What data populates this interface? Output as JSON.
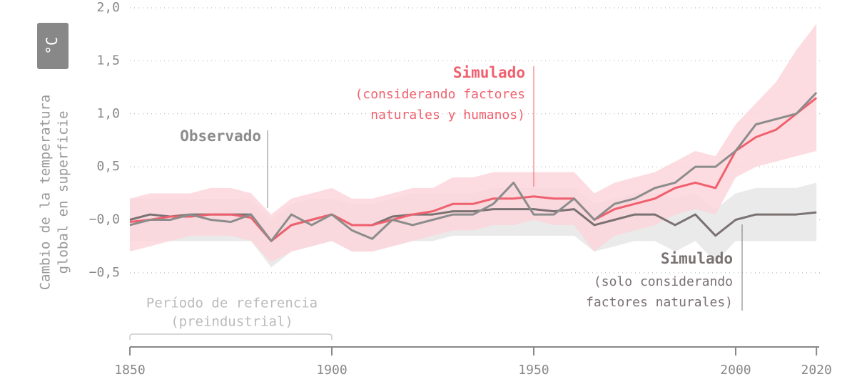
{
  "chart_data": {
    "type": "line",
    "y_label": [
      "Cambio de la temperatura",
      "global en superficie"
    ],
    "unit": "°C",
    "x": [
      1850,
      1855,
      1860,
      1865,
      1870,
      1875,
      1880,
      1885,
      1890,
      1895,
      1900,
      1905,
      1910,
      1915,
      1920,
      1925,
      1930,
      1935,
      1940,
      1945,
      1950,
      1955,
      1960,
      1965,
      1970,
      1975,
      1980,
      1985,
      1990,
      1995,
      2000,
      2005,
      2010,
      2015,
      2020
    ],
    "series": [
      {
        "name": "Observado",
        "color": "#8c8c8c",
        "label_lines": [],
        "values": [
          -0.05,
          0.0,
          0.0,
          0.05,
          0.0,
          -0.02,
          0.05,
          -0.2,
          0.05,
          -0.05,
          0.05,
          -0.1,
          -0.18,
          0.0,
          -0.05,
          0.0,
          0.05,
          0.05,
          0.15,
          0.35,
          0.05,
          0.05,
          0.2,
          0.0,
          0.15,
          0.2,
          0.3,
          0.35,
          0.5,
          0.5,
          0.65,
          0.9,
          0.95,
          1.0,
          1.2
        ]
      },
      {
        "name": "Simulado",
        "color": "#f0606e",
        "band_color": "#fcd6da",
        "label_lines": [
          "(considerando factores",
          "naturales y humanos)"
        ],
        "values": [
          -0.02,
          0.0,
          0.03,
          0.03,
          0.05,
          0.05,
          0.02,
          -0.2,
          -0.05,
          0.0,
          0.05,
          -0.05,
          -0.05,
          0.0,
          0.05,
          0.08,
          0.15,
          0.15,
          0.2,
          0.2,
          0.22,
          0.2,
          0.2,
          0.0,
          0.1,
          0.15,
          0.2,
          0.3,
          0.35,
          0.3,
          0.65,
          0.78,
          0.85,
          1.0,
          1.15
        ],
        "low": [
          -0.3,
          -0.25,
          -0.2,
          -0.15,
          -0.15,
          -0.15,
          -0.2,
          -0.4,
          -0.3,
          -0.25,
          -0.2,
          -0.3,
          -0.3,
          -0.25,
          -0.2,
          -0.15,
          -0.1,
          -0.1,
          -0.05,
          -0.05,
          0.0,
          -0.05,
          -0.05,
          -0.3,
          -0.15,
          -0.1,
          -0.05,
          0.05,
          0.1,
          0.05,
          0.4,
          0.5,
          0.55,
          0.6,
          0.65
        ],
        "high": [
          0.2,
          0.25,
          0.25,
          0.25,
          0.3,
          0.3,
          0.25,
          0.05,
          0.2,
          0.25,
          0.3,
          0.2,
          0.2,
          0.25,
          0.3,
          0.3,
          0.4,
          0.4,
          0.45,
          0.45,
          0.45,
          0.45,
          0.45,
          0.25,
          0.35,
          0.4,
          0.45,
          0.55,
          0.65,
          0.6,
          0.9,
          1.1,
          1.3,
          1.6,
          1.85
        ]
      },
      {
        "name": "Simulado",
        "color": "#7a7172",
        "band_color": "#e6e6e6",
        "label_lines": [
          "(solo considerando",
          "factores naturales)"
        ],
        "values": [
          0.0,
          0.05,
          0.03,
          0.05,
          0.05,
          0.05,
          0.05,
          -0.2,
          -0.05,
          0.0,
          0.05,
          -0.05,
          -0.05,
          0.03,
          0.05,
          0.05,
          0.08,
          0.08,
          0.1,
          0.1,
          0.1,
          0.08,
          0.1,
          -0.05,
          0.0,
          0.05,
          0.05,
          -0.05,
          0.05,
          -0.15,
          0.0,
          0.05,
          0.05,
          0.05,
          0.07
        ],
        "low": [
          -0.2,
          -0.2,
          -0.2,
          -0.2,
          -0.2,
          -0.2,
          -0.2,
          -0.45,
          -0.3,
          -0.25,
          -0.2,
          -0.3,
          -0.3,
          -0.25,
          -0.2,
          -0.2,
          -0.15,
          -0.15,
          -0.15,
          -0.15,
          -0.15,
          -0.15,
          -0.15,
          -0.3,
          -0.25,
          -0.2,
          -0.2,
          -0.3,
          -0.2,
          -0.4,
          -0.2,
          -0.2,
          -0.2,
          -0.2,
          -0.2
        ],
        "high": [
          0.2,
          0.2,
          0.2,
          0.2,
          0.2,
          0.2,
          0.2,
          0.0,
          0.15,
          0.2,
          0.2,
          0.15,
          0.15,
          0.2,
          0.25,
          0.25,
          0.25,
          0.25,
          0.3,
          0.3,
          0.3,
          0.3,
          0.3,
          0.15,
          0.2,
          0.25,
          0.25,
          0.2,
          0.25,
          0.1,
          0.25,
          0.3,
          0.3,
          0.3,
          0.35
        ]
      }
    ],
    "reference_label": [
      "Período de referencia",
      "(preindustrial)"
    ],
    "reference_period": [
      1850,
      1900
    ],
    "xlim": [
      1850,
      2022
    ],
    "xticks": [
      1850,
      1900,
      1950,
      2000,
      2020
    ],
    "ylim": [
      -1.2,
      2.0
    ],
    "yticks": [
      {
        "value": -0.5,
        "label": "−0,5"
      },
      {
        "value": 0,
        "label": "−0,0"
      },
      {
        "value": 0.5,
        "label": "0,5"
      },
      {
        "value": 1,
        "label": "1,0"
      },
      {
        "value": 1.5,
        "label": "1,5"
      },
      {
        "value": 2,
        "label": "2,0"
      }
    ],
    "grid": true
  }
}
